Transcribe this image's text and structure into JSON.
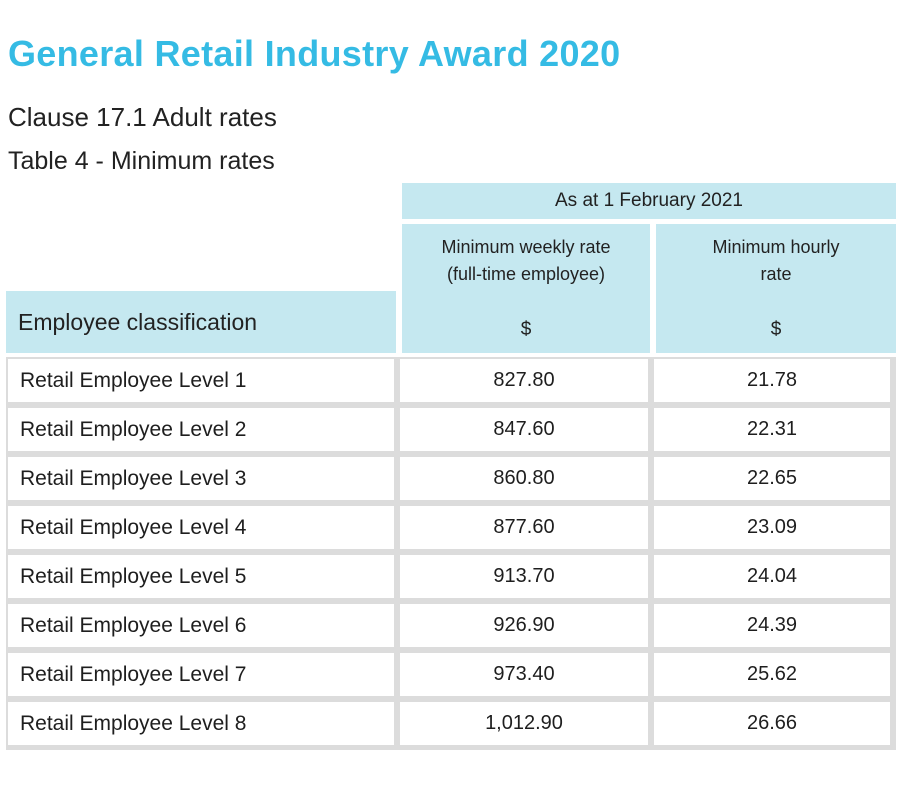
{
  "page": {
    "title": "General Retail Industry Award 2020",
    "subtitle_clause": "Clause 17.1 Adult rates",
    "subtitle_table": "Table 4 - Minimum rates"
  },
  "colors": {
    "accent_title": "#35bbe4",
    "header_cell_bg": "#c5e8f0",
    "grid_line": "#dcdcdc",
    "text": "#1e1e1e"
  },
  "table": {
    "period_header": "As at 1 February 2021",
    "classification_header": "Employee classification",
    "columns": {
      "weekly": {
        "line1": "Minimum weekly rate",
        "line2": "(full-time employee)",
        "unit": "$"
      },
      "hourly": {
        "line1": "Minimum hourly",
        "line2": "rate",
        "unit": "$"
      }
    },
    "rows": [
      {
        "classification": "Retail Employee Level 1",
        "weekly": "827.80",
        "hourly": "21.78"
      },
      {
        "classification": "Retail Employee Level 2",
        "weekly": "847.60",
        "hourly": "22.31"
      },
      {
        "classification": "Retail Employee Level 3",
        "weekly": "860.80",
        "hourly": "22.65"
      },
      {
        "classification": "Retail Employee Level 4",
        "weekly": "877.60",
        "hourly": "23.09"
      },
      {
        "classification": "Retail Employee Level 5",
        "weekly": "913.70",
        "hourly": "24.04"
      },
      {
        "classification": "Retail Employee Level 6",
        "weekly": "926.90",
        "hourly": "24.39"
      },
      {
        "classification": "Retail Employee Level 7",
        "weekly": "973.40",
        "hourly": "25.62"
      },
      {
        "classification": "Retail Employee Level 8",
        "weekly": "1,012.90",
        "hourly": "26.66"
      }
    ]
  }
}
